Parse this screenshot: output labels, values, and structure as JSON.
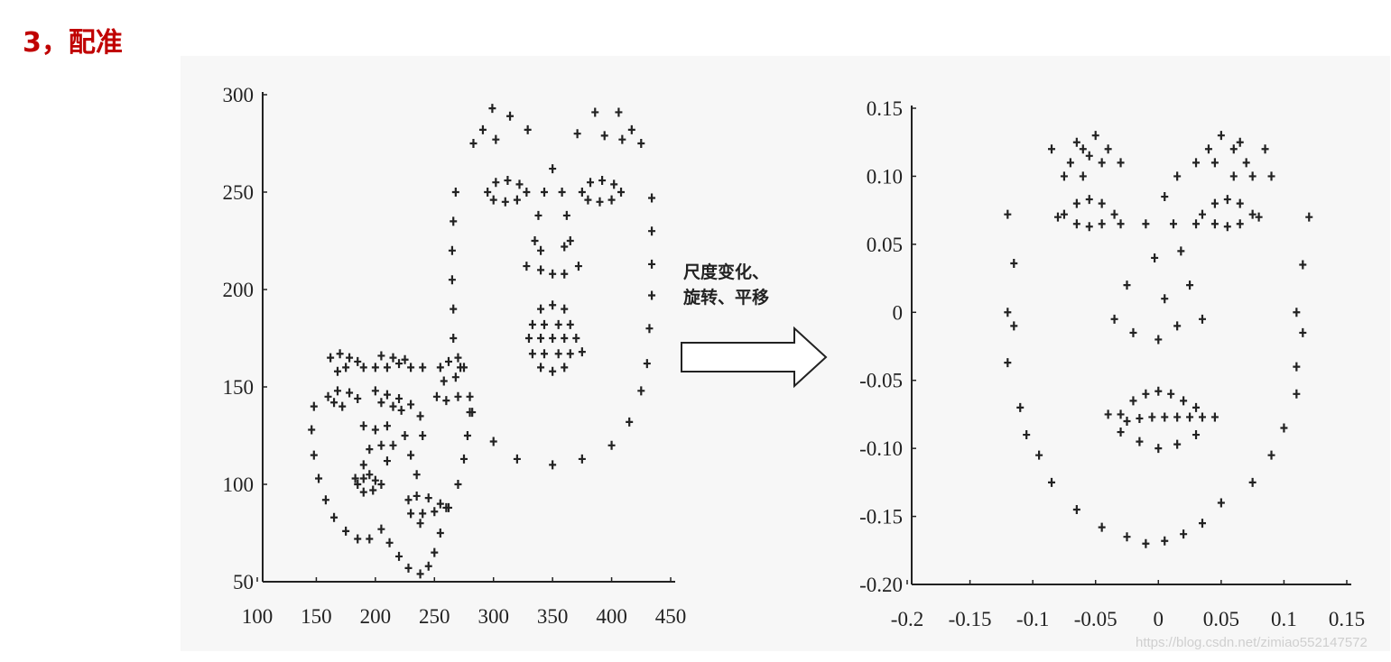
{
  "heading": "3，配准",
  "arrow_label_line1": "尺度变化、",
  "arrow_label_line2": "旋转、平移",
  "watermark": "https://blog.csdn.net/zimiao552147572",
  "marker_color": "#222222",
  "heading_color": "#c00000",
  "chart_data": [
    {
      "type": "scatter",
      "marker": "plus",
      "xlim": [
        100,
        450
      ],
      "ylim": [
        50,
        300
      ],
      "xticks": [
        100,
        150,
        200,
        250,
        300,
        350,
        400,
        450
      ],
      "yticks": [
        50,
        100,
        150,
        200,
        250,
        300
      ],
      "grid": false,
      "points": [
        [
          283,
          275
        ],
        [
          291,
          282
        ],
        [
          299,
          293
        ],
        [
          314,
          289
        ],
        [
          329,
          282
        ],
        [
          302,
          277
        ],
        [
          371,
          280
        ],
        [
          386,
          291
        ],
        [
          406,
          291
        ],
        [
          417,
          282
        ],
        [
          425,
          275
        ],
        [
          409,
          277
        ],
        [
          394,
          279
        ],
        [
          295,
          250
        ],
        [
          302,
          255
        ],
        [
          312,
          256
        ],
        [
          322,
          254
        ],
        [
          328,
          250
        ],
        [
          320,
          246
        ],
        [
          310,
          245
        ],
        [
          300,
          246
        ],
        [
          375,
          250
        ],
        [
          382,
          255
        ],
        [
          392,
          256
        ],
        [
          402,
          254
        ],
        [
          408,
          250
        ],
        [
          400,
          246
        ],
        [
          390,
          245
        ],
        [
          380,
          246
        ],
        [
          350,
          262
        ],
        [
          343,
          250
        ],
        [
          358,
          250
        ],
        [
          338,
          238
        ],
        [
          362,
          238
        ],
        [
          335,
          225
        ],
        [
          365,
          225
        ],
        [
          340,
          220
        ],
        [
          360,
          222
        ],
        [
          328,
          212
        ],
        [
          340,
          210
        ],
        [
          350,
          208
        ],
        [
          360,
          208
        ],
        [
          372,
          212
        ],
        [
          340,
          190
        ],
        [
          350,
          192
        ],
        [
          360,
          190
        ],
        [
          333,
          182
        ],
        [
          343,
          182
        ],
        [
          355,
          182
        ],
        [
          365,
          182
        ],
        [
          330,
          175
        ],
        [
          340,
          175
        ],
        [
          350,
          175
        ],
        [
          360,
          175
        ],
        [
          370,
          175
        ],
        [
          333,
          167
        ],
        [
          343,
          167
        ],
        [
          355,
          167
        ],
        [
          365,
          167
        ],
        [
          340,
          160
        ],
        [
          350,
          158
        ],
        [
          360,
          160
        ],
        [
          375,
          168
        ],
        [
          268,
          250
        ],
        [
          266,
          235
        ],
        [
          265,
          220
        ],
        [
          265,
          205
        ],
        [
          266,
          190
        ],
        [
          266,
          175
        ],
        [
          272,
          160
        ],
        [
          282,
          137
        ],
        [
          300,
          122
        ],
        [
          320,
          113
        ],
        [
          350,
          110
        ],
        [
          375,
          113
        ],
        [
          400,
          120
        ],
        [
          415,
          132
        ],
        [
          425,
          148
        ],
        [
          430,
          162
        ],
        [
          432,
          180
        ],
        [
          434,
          197
        ],
        [
          434,
          213
        ],
        [
          434,
          230
        ],
        [
          434,
          247
        ],
        [
          148,
          140
        ],
        [
          146,
          128
        ],
        [
          148,
          115
        ],
        [
          152,
          103
        ],
        [
          158,
          92
        ],
        [
          165,
          83
        ],
        [
          175,
          76
        ],
        [
          185,
          72
        ],
        [
          195,
          72
        ],
        [
          205,
          77
        ],
        [
          212,
          70
        ],
        [
          220,
          63
        ],
        [
          228,
          57
        ],
        [
          238,
          54
        ],
        [
          245,
          58
        ],
        [
          250,
          65
        ],
        [
          255,
          75
        ],
        [
          262,
          88
        ],
        [
          270,
          100
        ],
        [
          275,
          113
        ],
        [
          278,
          125
        ],
        [
          280,
          137
        ],
        [
          162,
          165
        ],
        [
          170,
          167
        ],
        [
          178,
          165
        ],
        [
          185,
          163
        ],
        [
          190,
          160
        ],
        [
          168,
          158
        ],
        [
          175,
          160
        ],
        [
          200,
          160
        ],
        [
          210,
          160
        ],
        [
          220,
          162
        ],
        [
          230,
          160
        ],
        [
          215,
          165
        ],
        [
          205,
          166
        ],
        [
          225,
          164
        ],
        [
          240,
          160
        ],
        [
          160,
          145
        ],
        [
          168,
          148
        ],
        [
          178,
          147
        ],
        [
          185,
          144
        ],
        [
          172,
          140
        ],
        [
          165,
          142
        ],
        [
          200,
          148
        ],
        [
          210,
          146
        ],
        [
          220,
          144
        ],
        [
          230,
          141
        ],
        [
          215,
          140
        ],
        [
          205,
          142
        ],
        [
          222,
          138
        ],
        [
          255,
          160
        ],
        [
          262,
          163
        ],
        [
          270,
          165
        ],
        [
          275,
          160
        ],
        [
          268,
          155
        ],
        [
          258,
          153
        ],
        [
          252,
          145
        ],
        [
          260,
          143
        ],
        [
          270,
          145
        ],
        [
          280,
          145
        ],
        [
          190,
          130
        ],
        [
          200,
          128
        ],
        [
          210,
          130
        ],
        [
          205,
          120
        ],
        [
          195,
          118
        ],
        [
          215,
          120
        ],
        [
          190,
          110
        ],
        [
          210,
          112
        ],
        [
          225,
          125
        ],
        [
          230,
          115
        ],
        [
          235,
          105
        ],
        [
          240,
          125
        ],
        [
          238,
          135
        ],
        [
          185,
          100
        ],
        [
          190,
          103
        ],
        [
          195,
          105
        ],
        [
          200,
          102
        ],
        [
          205,
          100
        ],
        [
          198,
          97
        ],
        [
          190,
          96
        ],
        [
          183,
          103
        ],
        [
          228,
          92
        ],
        [
          235,
          94
        ],
        [
          245,
          93
        ],
        [
          255,
          90
        ],
        [
          230,
          85
        ],
        [
          240,
          85
        ],
        [
          250,
          86
        ],
        [
          260,
          88
        ],
        [
          238,
          80
        ]
      ]
    },
    {
      "type": "scatter",
      "marker": "plus",
      "xlim": [
        -0.2,
        0.15
      ],
      "ylim": [
        -0.2,
        0.15
      ],
      "xticks": [
        "-0.2",
        "-0.15",
        "-0.1",
        "-0.05",
        "0",
        "0.05",
        "0.1",
        "0.15"
      ],
      "yticks": [
        "-0.20",
        "-0.15",
        "-0.10",
        "-0.05",
        "0",
        "0.05",
        "0.10",
        "0.15"
      ],
      "grid": false,
      "points": [
        [
          -0.085,
          0.12
        ],
        [
          -0.07,
          0.11
        ],
        [
          -0.06,
          0.12
        ],
        [
          -0.05,
          0.13
        ],
        [
          -0.04,
          0.12
        ],
        [
          -0.03,
          0.11
        ],
        [
          -0.075,
          0.1
        ],
        [
          -0.06,
          0.1
        ],
        [
          -0.045,
          0.11
        ],
        [
          -0.065,
          0.125
        ],
        [
          -0.055,
          0.115
        ],
        [
          0.085,
          0.12
        ],
        [
          0.07,
          0.11
        ],
        [
          0.06,
          0.12
        ],
        [
          0.05,
          0.13
        ],
        [
          0.04,
          0.12
        ],
        [
          0.03,
          0.11
        ],
        [
          0.075,
          0.1
        ],
        [
          0.06,
          0.1
        ],
        [
          0.045,
          0.11
        ],
        [
          0.065,
          0.125
        ],
        [
          0.09,
          0.1
        ],
        [
          -0.075,
          0.072
        ],
        [
          -0.065,
          0.08
        ],
        [
          -0.055,
          0.083
        ],
        [
          -0.045,
          0.08
        ],
        [
          -0.035,
          0.072
        ],
        [
          -0.045,
          0.065
        ],
        [
          -0.055,
          0.063
        ],
        [
          -0.065,
          0.065
        ],
        [
          -0.08,
          0.07
        ],
        [
          -0.03,
          0.065
        ],
        [
          0.075,
          0.072
        ],
        [
          0.065,
          0.08
        ],
        [
          0.055,
          0.083
        ],
        [
          0.045,
          0.08
        ],
        [
          0.035,
          0.072
        ],
        [
          0.045,
          0.065
        ],
        [
          0.055,
          0.063
        ],
        [
          0.065,
          0.065
        ],
        [
          0.08,
          0.07
        ],
        [
          0.03,
          0.065
        ],
        [
          0.005,
          0.085
        ],
        [
          0.015,
          0.1
        ],
        [
          -0.01,
          0.065
        ],
        [
          0.012,
          0.065
        ],
        [
          -0.003,
          0.04
        ],
        [
          0.018,
          0.045
        ],
        [
          -0.025,
          0.02
        ],
        [
          0.025,
          0.02
        ],
        [
          -0.035,
          -0.005
        ],
        [
          -0.02,
          -0.015
        ],
        [
          0,
          -0.02
        ],
        [
          0.015,
          -0.01
        ],
        [
          0.035,
          -0.005
        ],
        [
          0.005,
          0.01
        ],
        [
          -0.03,
          -0.075
        ],
        [
          -0.02,
          -0.065
        ],
        [
          -0.01,
          -0.06
        ],
        [
          0,
          -0.058
        ],
        [
          0.01,
          -0.06
        ],
        [
          0.02,
          -0.065
        ],
        [
          0.03,
          -0.07
        ],
        [
          -0.025,
          -0.08
        ],
        [
          -0.015,
          -0.078
        ],
        [
          -0.005,
          -0.077
        ],
        [
          0.005,
          -0.077
        ],
        [
          0.015,
          -0.077
        ],
        [
          0.025,
          -0.077
        ],
        [
          0.035,
          -0.077
        ],
        [
          0.045,
          -0.077
        ],
        [
          -0.03,
          -0.088
        ],
        [
          -0.015,
          -0.095
        ],
        [
          0,
          -0.1
        ],
        [
          0.015,
          -0.097
        ],
        [
          0.03,
          -0.09
        ],
        [
          -0.04,
          -0.075
        ],
        [
          -0.12,
          0.072
        ],
        [
          -0.115,
          0.036
        ],
        [
          -0.12,
          0
        ],
        [
          -0.115,
          -0.01
        ],
        [
          -0.12,
          -0.037
        ],
        [
          -0.11,
          -0.07
        ],
        [
          -0.105,
          -0.09
        ],
        [
          -0.095,
          -0.105
        ],
        [
          -0.085,
          -0.125
        ],
        [
          -0.065,
          -0.145
        ],
        [
          -0.045,
          -0.158
        ],
        [
          -0.025,
          -0.165
        ],
        [
          -0.01,
          -0.17
        ],
        [
          0.005,
          -0.168
        ],
        [
          0.02,
          -0.163
        ],
        [
          0.035,
          -0.155
        ],
        [
          0.05,
          -0.14
        ],
        [
          0.075,
          -0.125
        ],
        [
          0.09,
          -0.105
        ],
        [
          0.1,
          -0.085
        ],
        [
          0.11,
          -0.06
        ],
        [
          0.11,
          -0.04
        ],
        [
          0.115,
          -0.015
        ],
        [
          0.11,
          0
        ],
        [
          0.115,
          0.035
        ],
        [
          0.12,
          0.07
        ]
      ]
    }
  ]
}
